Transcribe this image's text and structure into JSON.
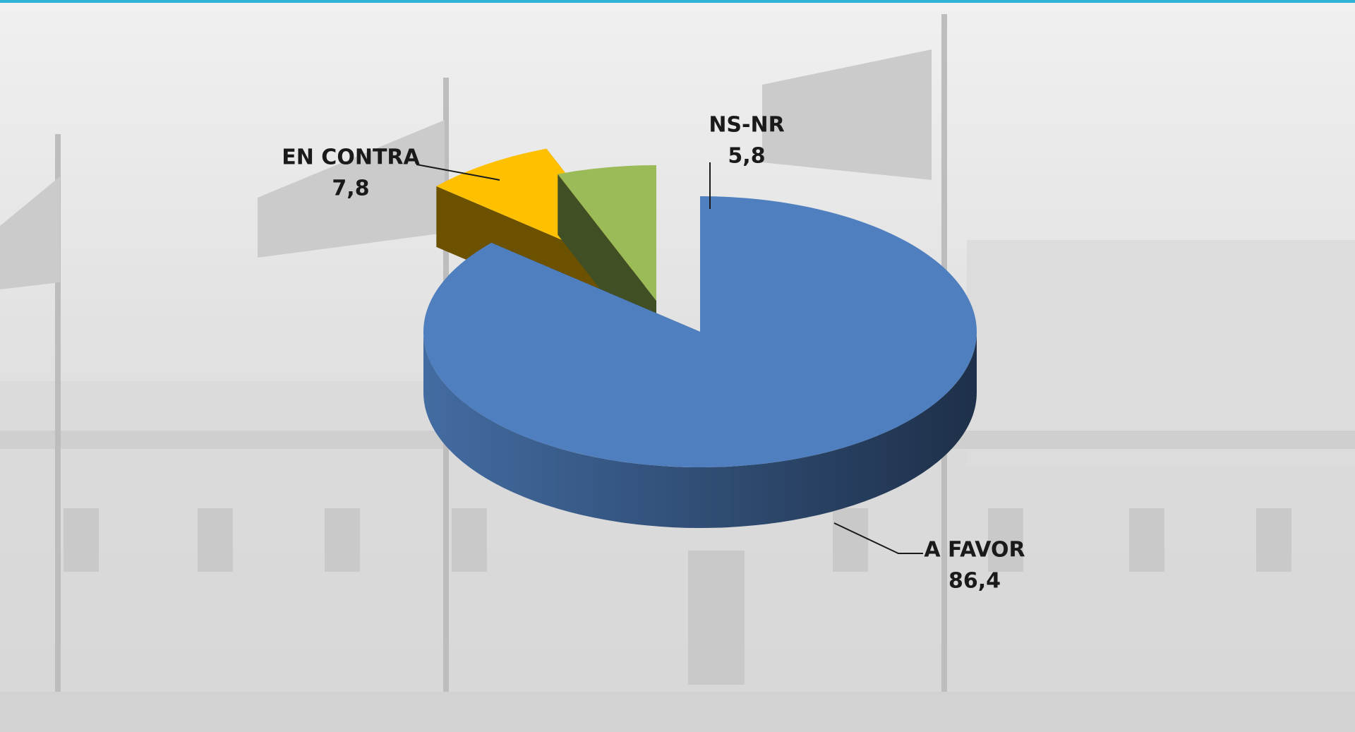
{
  "chart_data": {
    "type": "pie",
    "categories": [
      "A FAVOR",
      "EN CONTRA",
      "NS-NR"
    ],
    "values": [
      86.4,
      7.8,
      5.8
    ],
    "value_labels": [
      "86,4",
      "7,8",
      "5,8"
    ],
    "colors": [
      "#4f7fbf",
      "#ffc000",
      "#9bbb59"
    ]
  }
}
